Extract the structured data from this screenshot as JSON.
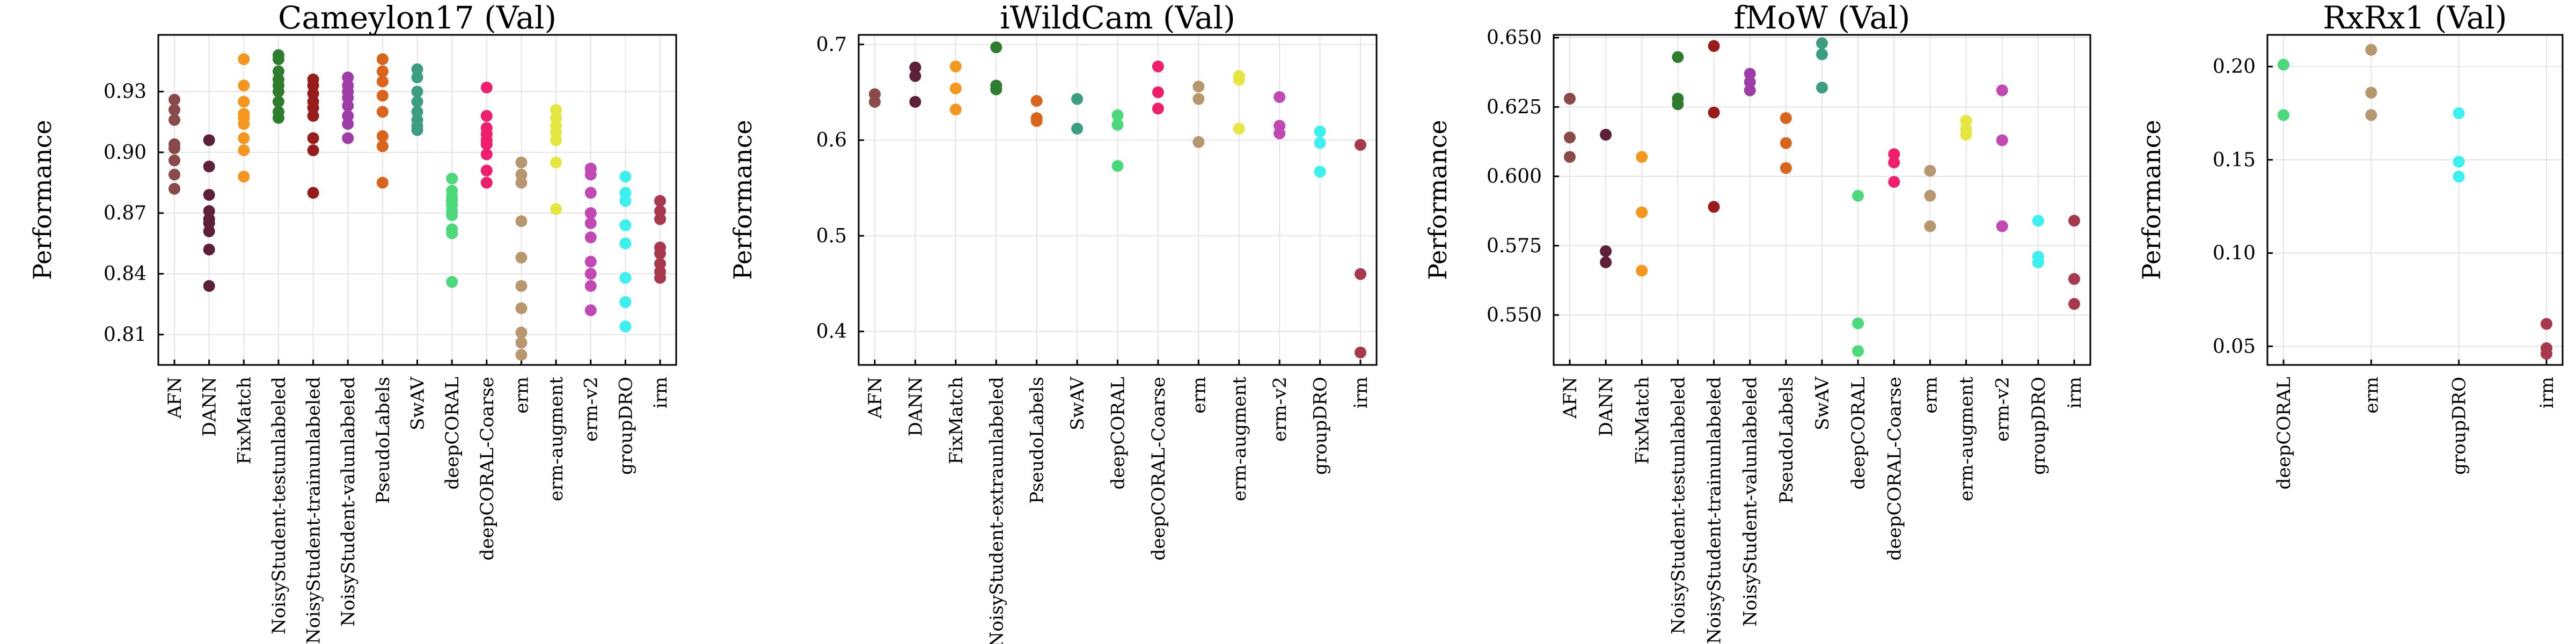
{
  "chart_data": [
    {
      "type": "scatter",
      "title": "Cameylon17 (Val)",
      "ylabel": "Performance",
      "ylim": [
        0.795,
        0.958
      ],
      "yticks": [
        0.81,
        0.84,
        0.87,
        0.9,
        0.93
      ],
      "ytick_labels": [
        "0.81",
        "0.84",
        "0.87",
        "0.90",
        "0.93"
      ],
      "grid": true,
      "categories": [
        "AFN",
        "DANN",
        "FixMatch",
        "NoisyStudent-testunlabeled",
        "NoisyStudent-trainunlabeled",
        "NoisyStudent-valunlabeled",
        "PseudoLabels",
        "SwAV",
        "deepCORAL",
        "deepCORAL-Coarse",
        "erm",
        "erm-augment",
        "erm-v2",
        "groupDRO",
        "irm"
      ],
      "colors": [
        "#8b4a4a",
        "#5e1f3a",
        "#f5961f",
        "#2e7d2e",
        "#991c1c",
        "#9e3ca8",
        "#d9641c",
        "#3b9e83",
        "#4cd97c",
        "#f01f6e",
        "#b8976e",
        "#e6e640",
        "#c248b4",
        "#3df0f0",
        "#a8384e"
      ],
      "series": [
        {
          "category": "AFN",
          "values": [
            0.926,
            0.921,
            0.916,
            0.904,
            0.902,
            0.896,
            0.889,
            0.882
          ]
        },
        {
          "category": "DANN",
          "values": [
            0.906,
            0.893,
            0.879,
            0.871,
            0.867,
            0.865,
            0.861,
            0.852,
            0.834
          ]
        },
        {
          "category": "FixMatch",
          "values": [
            0.946,
            0.933,
            0.925,
            0.919,
            0.917,
            0.914,
            0.907,
            0.901,
            0.888
          ]
        },
        {
          "category": "NoisyStudent-testunlabeled",
          "values": [
            0.948,
            0.946,
            0.94,
            0.936,
            0.933,
            0.93,
            0.925,
            0.92,
            0.917
          ]
        },
        {
          "category": "NoisyStudent-trainunlabeled",
          "values": [
            0.936,
            0.933,
            0.929,
            0.925,
            0.922,
            0.918,
            0.907,
            0.901,
            0.88
          ]
        },
        {
          "category": "NoisyStudent-valunlabeled",
          "values": [
            0.937,
            0.933,
            0.93,
            0.927,
            0.923,
            0.918,
            0.914,
            0.907
          ]
        },
        {
          "category": "PseudoLabels",
          "values": [
            0.946,
            0.94,
            0.935,
            0.928,
            0.92,
            0.908,
            0.903,
            0.885
          ]
        },
        {
          "category": "SwAV",
          "values": [
            0.941,
            0.937,
            0.93,
            0.925,
            0.92,
            0.916,
            0.913,
            0.911
          ]
        },
        {
          "category": "deepCORAL",
          "values": [
            0.887,
            0.881,
            0.878,
            0.876,
            0.874,
            0.871,
            0.869,
            0.862,
            0.86,
            0.836
          ]
        },
        {
          "category": "deepCORAL-Coarse",
          "values": [
            0.932,
            0.918,
            0.912,
            0.909,
            0.906,
            0.904,
            0.899,
            0.891,
            0.885
          ]
        },
        {
          "category": "erm",
          "values": [
            0.895,
            0.889,
            0.885,
            0.866,
            0.848,
            0.834,
            0.823,
            0.811,
            0.806,
            0.8
          ]
        },
        {
          "category": "erm-augment",
          "values": [
            0.921,
            0.917,
            0.913,
            0.91,
            0.906,
            0.895,
            0.872
          ]
        },
        {
          "category": "erm-v2",
          "values": [
            0.892,
            0.889,
            0.88,
            0.87,
            0.865,
            0.858,
            0.846,
            0.84,
            0.834,
            0.822
          ]
        },
        {
          "category": "groupDRO",
          "values": [
            0.888,
            0.88,
            0.876,
            0.864,
            0.855,
            0.838,
            0.826,
            0.814
          ]
        },
        {
          "category": "irm",
          "values": [
            0.876,
            0.871,
            0.867,
            0.853,
            0.85,
            0.845,
            0.841,
            0.838
          ]
        }
      ]
    },
    {
      "type": "scatter",
      "title": "iWildCam (Val)",
      "ylabel": "Performance",
      "ylim": [
        0.365,
        0.71
      ],
      "yticks": [
        0.4,
        0.5,
        0.6,
        0.7
      ],
      "ytick_labels": [
        "0.4",
        "0.5",
        "0.6",
        "0.7"
      ],
      "grid": true,
      "categories": [
        "AFN",
        "DANN",
        "FixMatch",
        "NoisyStudent-extraunlabeled",
        "PseudoLabels",
        "SwAV",
        "deepCORAL",
        "deepCORAL-Coarse",
        "erm",
        "erm-augment",
        "erm-v2",
        "groupDRO",
        "irm"
      ],
      "colors": [
        "#8b4a4a",
        "#5e1f3a",
        "#f5961f",
        "#2e7d2e",
        "#d9641c",
        "#3b9e83",
        "#4cd97c",
        "#f01f6e",
        "#b8976e",
        "#e6e640",
        "#c248b4",
        "#3df0f0",
        "#a8384e"
      ],
      "series": [
        {
          "category": "AFN",
          "values": [
            0.648,
            0.64
          ]
        },
        {
          "category": "DANN",
          "values": [
            0.676,
            0.667,
            0.64
          ]
        },
        {
          "category": "FixMatch",
          "values": [
            0.677,
            0.654,
            0.632
          ]
        },
        {
          "category": "NoisyStudent-extraunlabeled",
          "values": [
            0.697,
            0.657,
            0.653
          ]
        },
        {
          "category": "PseudoLabels",
          "values": [
            0.641,
            0.623,
            0.62
          ]
        },
        {
          "category": "SwAV",
          "values": [
            0.643,
            0.612
          ]
        },
        {
          "category": "deepCORAL",
          "values": [
            0.626,
            0.616,
            0.573
          ]
        },
        {
          "category": "deepCORAL-Coarse",
          "values": [
            0.677,
            0.65,
            0.633
          ]
        },
        {
          "category": "erm",
          "values": [
            0.656,
            0.643,
            0.598
          ]
        },
        {
          "category": "erm-augment",
          "values": [
            0.667,
            0.663,
            0.612
          ]
        },
        {
          "category": "erm-v2",
          "values": [
            0.645,
            0.615,
            0.607
          ]
        },
        {
          "category": "groupDRO",
          "values": [
            0.609,
            0.597,
            0.567
          ]
        },
        {
          "category": "irm",
          "values": [
            0.595,
            0.46,
            0.378
          ]
        }
      ]
    },
    {
      "type": "scatter",
      "title": "fMoW (Val)",
      "ylabel": "Performance",
      "ylim": [
        0.532,
        0.651
      ],
      "yticks": [
        0.55,
        0.575,
        0.6,
        0.625,
        0.65
      ],
      "ytick_labels": [
        "0.550",
        "0.575",
        "0.600",
        "0.625",
        "0.650"
      ],
      "grid": true,
      "categories": [
        "AFN",
        "DANN",
        "FixMatch",
        "NoisyStudent-testunlabeled",
        "NoisyStudent-trainunlabeled",
        "NoisyStudent-valunlabeled",
        "PseudoLabels",
        "SwAV",
        "deepCORAL",
        "deepCORAL-Coarse",
        "erm",
        "erm-augment",
        "erm-v2",
        "groupDRO",
        "irm"
      ],
      "colors": [
        "#8b4a4a",
        "#5e1f3a",
        "#f5961f",
        "#2e7d2e",
        "#991c1c",
        "#9e3ca8",
        "#d9641c",
        "#3b9e83",
        "#4cd97c",
        "#f01f6e",
        "#b8976e",
        "#e6e640",
        "#c248b4",
        "#3df0f0",
        "#a8384e"
      ],
      "series": [
        {
          "category": "AFN",
          "values": [
            0.628,
            0.614,
            0.607
          ]
        },
        {
          "category": "DANN",
          "values": [
            0.615,
            0.573,
            0.569
          ]
        },
        {
          "category": "FixMatch",
          "values": [
            0.607,
            0.587,
            0.566
          ]
        },
        {
          "category": "NoisyStudent-testunlabeled",
          "values": [
            0.643,
            0.628,
            0.626
          ]
        },
        {
          "category": "NoisyStudent-trainunlabeled",
          "values": [
            0.647,
            0.623,
            0.589
          ]
        },
        {
          "category": "NoisyStudent-valunlabeled",
          "values": [
            0.637,
            0.634,
            0.631
          ]
        },
        {
          "category": "PseudoLabels",
          "values": [
            0.621,
            0.612,
            0.603
          ]
        },
        {
          "category": "SwAV",
          "values": [
            0.648,
            0.644,
            0.632
          ]
        },
        {
          "category": "deepCORAL",
          "values": [
            0.593,
            0.547,
            0.537
          ]
        },
        {
          "category": "deepCORAL-Coarse",
          "values": [
            0.608,
            0.605,
            0.598
          ]
        },
        {
          "category": "erm",
          "values": [
            0.602,
            0.593,
            0.582
          ]
        },
        {
          "category": "erm-augment",
          "values": [
            0.62,
            0.617,
            0.615
          ]
        },
        {
          "category": "erm-v2",
          "values": [
            0.631,
            0.613,
            0.582
          ]
        },
        {
          "category": "groupDRO",
          "values": [
            0.584,
            0.571,
            0.569
          ]
        },
        {
          "category": "irm",
          "values": [
            0.584,
            0.563,
            0.554
          ]
        }
      ]
    },
    {
      "type": "scatter",
      "title": "RxRx1 (Val)",
      "ylabel": "Performance",
      "ylim": [
        0.04,
        0.217
      ],
      "yticks": [
        0.05,
        0.1,
        0.15,
        0.2
      ],
      "ytick_labels": [
        "0.05",
        "0.10",
        "0.15",
        "0.20"
      ],
      "grid": true,
      "categories": [
        "deepCORAL",
        "erm",
        "groupDRO",
        "irm"
      ],
      "colors": [
        "#4cd97c",
        "#b8976e",
        "#3df0f0",
        "#a8384e"
      ],
      "series": [
        {
          "category": "deepCORAL",
          "values": [
            0.201,
            0.174
          ]
        },
        {
          "category": "erm",
          "values": [
            0.209,
            0.186,
            0.174
          ]
        },
        {
          "category": "groupDRO",
          "values": [
            0.175,
            0.149,
            0.141
          ]
        },
        {
          "category": "irm",
          "values": [
            0.062,
            0.049,
            0.046
          ]
        }
      ]
    }
  ]
}
